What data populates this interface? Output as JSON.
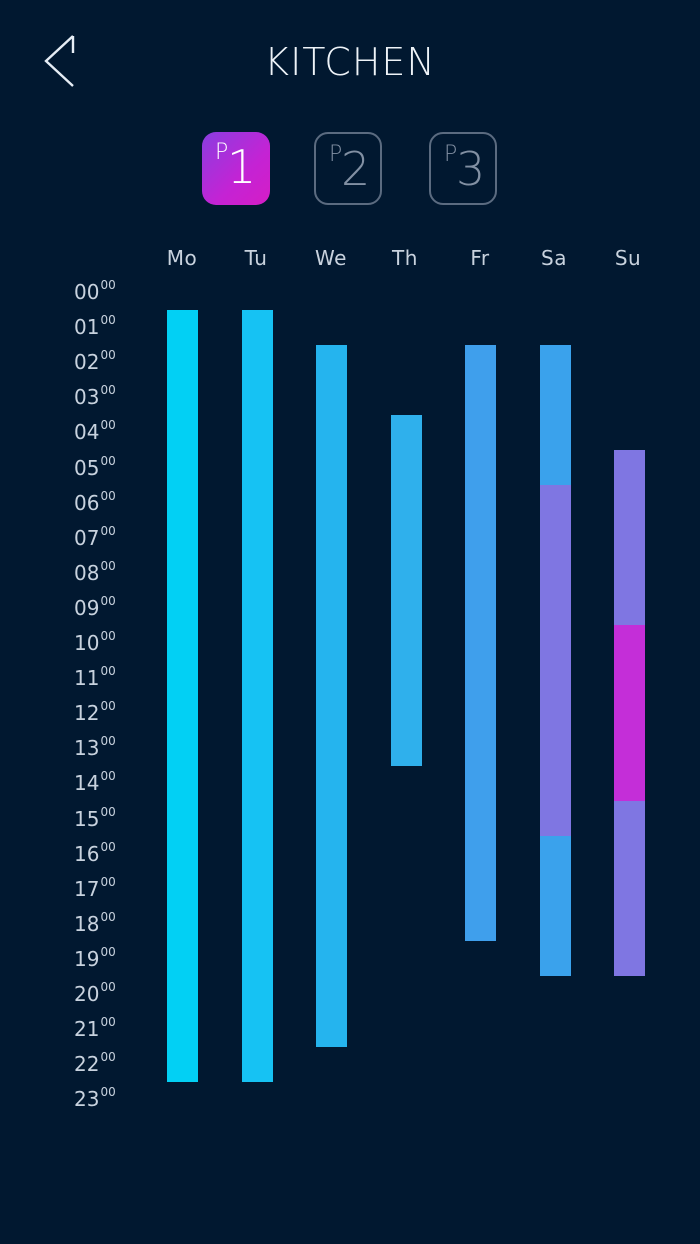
{
  "header": {
    "title": "KITCHEN",
    "back_icon": "chevron-left-icon"
  },
  "programs": [
    {
      "prefix": "P",
      "number": "1",
      "active": true
    },
    {
      "prefix": "P",
      "number": "2",
      "active": false
    },
    {
      "prefix": "P",
      "number": "3",
      "active": false
    }
  ],
  "days": [
    "Mo",
    "Tu",
    "We",
    "Th",
    "Fr",
    "Sa",
    "Su"
  ],
  "hours": [
    {
      "h": "00",
      "m": "00"
    },
    {
      "h": "01",
      "m": "00"
    },
    {
      "h": "02",
      "m": "00"
    },
    {
      "h": "03",
      "m": "00"
    },
    {
      "h": "04",
      "m": "00"
    },
    {
      "h": "05",
      "m": "00"
    },
    {
      "h": "06",
      "m": "00"
    },
    {
      "h": "07",
      "m": "00"
    },
    {
      "h": "08",
      "m": "00"
    },
    {
      "h": "09",
      "m": "00"
    },
    {
      "h": "10",
      "m": "00"
    },
    {
      "h": "11",
      "m": "00"
    },
    {
      "h": "12",
      "m": "00"
    },
    {
      "h": "13",
      "m": "00"
    },
    {
      "h": "14",
      "m": "00"
    },
    {
      "h": "15",
      "m": "00"
    },
    {
      "h": "16",
      "m": "00"
    },
    {
      "h": "17",
      "m": "00"
    },
    {
      "h": "18",
      "m": "00"
    },
    {
      "h": "19",
      "m": "00"
    },
    {
      "h": "20",
      "m": "00"
    },
    {
      "h": "21",
      "m": "00"
    },
    {
      "h": "22",
      "m": "00"
    },
    {
      "h": "23",
      "m": "00"
    }
  ],
  "colors": {
    "background": "#011830",
    "mo": "#02d0f4",
    "tu": "#16c2f3",
    "we": "#25b4ee",
    "th": "#2fb0ec",
    "fr": "#3f9fec",
    "sa": "#3aa2ec",
    "violet": "#7f76e2",
    "magenta": "#c42ed8"
  },
  "schedule": [
    {
      "day": "Mo",
      "segments": [
        {
          "start": 0.5,
          "end": 22.5,
          "color": "#02d0f4"
        }
      ]
    },
    {
      "day": "Tu",
      "segments": [
        {
          "start": 0.5,
          "end": 22.5,
          "color": "#16c2f3"
        }
      ]
    },
    {
      "day": "We",
      "segments": [
        {
          "start": 1.5,
          "end": 21.5,
          "color": "#25b4ee"
        }
      ]
    },
    {
      "day": "Th",
      "segments": [
        {
          "start": 3.5,
          "end": 13.5,
          "color": "#2fb0ec"
        }
      ]
    },
    {
      "day": "Fr",
      "segments": [
        {
          "start": 1.5,
          "end": 18.5,
          "color": "#3f9fec"
        }
      ]
    },
    {
      "day": "Sa",
      "segments": [
        {
          "start": 1.5,
          "end": 5.5,
          "color": "#3aa2ec"
        },
        {
          "start": 5.5,
          "end": 15.5,
          "color": "#7f76e2"
        },
        {
          "start": 15.5,
          "end": 19.5,
          "color": "#3aa2ec"
        }
      ]
    },
    {
      "day": "Su",
      "segments": [
        {
          "start": 4.5,
          "end": 9.5,
          "color": "#7f76e2"
        },
        {
          "start": 9.5,
          "end": 14.5,
          "color": "#c42ed8"
        },
        {
          "start": 14.5,
          "end": 19.5,
          "color": "#7f76e2"
        }
      ]
    }
  ]
}
